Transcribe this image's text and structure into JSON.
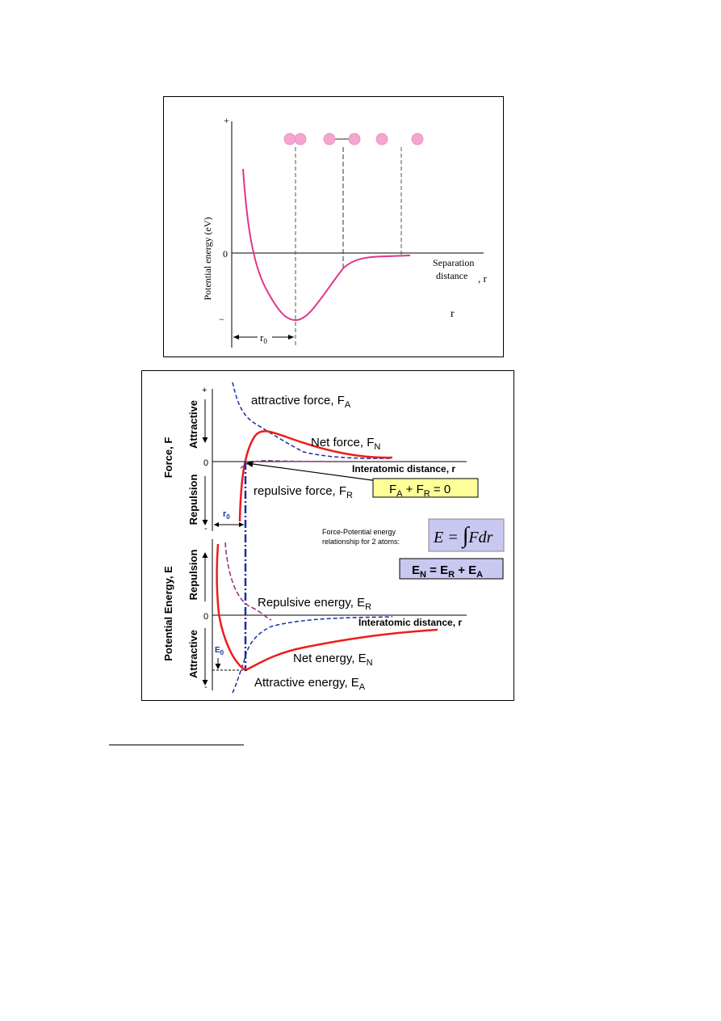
{
  "figure1": {
    "y_axis_label": "Potential energy (eV)",
    "y_plus": "+",
    "y_zero": "0",
    "y_minus": "−",
    "x_label_line1": "Separation",
    "x_label_line2": "distance",
    "x_label_suffix": ", r",
    "r_label": "r",
    "r0_label": "r",
    "r0_sub": "0",
    "colors": {
      "curve": "#e0358a",
      "atom": "#f4a6cf"
    }
  },
  "figure2": {
    "force_axis_label": "Force, F",
    "energy_axis_label": "Potential Energy, E",
    "force_attractive": "Attractive",
    "force_repulsion": "Repulsion",
    "energy_repulsion": "Repulsion",
    "energy_attractive": "Attractive",
    "plus": "+",
    "minus": "-",
    "zero": "0",
    "attractive_force": "attractive force, F",
    "attractive_force_sub": "A",
    "net_force": "Net force, F",
    "net_force_sub": "N",
    "repulsive_force": "repulsive force, F",
    "repulsive_force_sub": "R",
    "interatomic_distance": "Interatomic distance, r",
    "balance_eq": {
      "a": "F",
      "a_sub": "A",
      "mid": " + F",
      "b_sub": "R",
      "end": " = 0"
    },
    "relationship_line1": "Force-Potential energy",
    "relationship_line2": "relationship for 2 atoms:",
    "integral_eq": {
      "lhs": "E = ",
      "integral": "∫",
      "rhs": "Fdr"
    },
    "net_energy_eq": {
      "a": "E",
      "a_sub": "N",
      "mid1": " = E",
      "b_sub": "R",
      "mid2": " + E",
      "c_sub": "A"
    },
    "r0_label": "r",
    "r0_sub": "0",
    "e0_label": "E",
    "e0_sub": "0",
    "repulsive_energy": "Repulsive energy, E",
    "repulsive_energy_sub": "R",
    "net_energy": "Net energy, E",
    "net_energy_sub": "N",
    "attractive_energy": "Attractive energy, E",
    "attractive_energy_sub": "A",
    "colors": {
      "net": "#ee1c1c",
      "attractive": "#1a2fa0",
      "repulsive": "#8b2f7a",
      "eq_box_yellow": "#ffff99",
      "eq_box_purple": "#c8c8f0"
    }
  }
}
